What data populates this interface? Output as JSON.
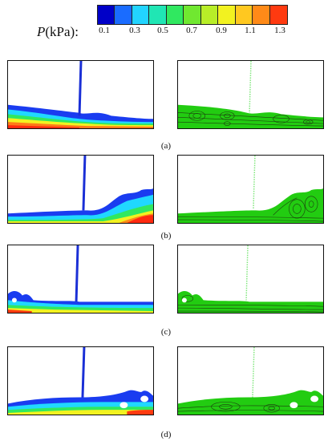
{
  "legend": {
    "symbol": "P",
    "unit": "(kPa):",
    "ticks": [
      "0.1",
      "0.3",
      "0.5",
      "0.7",
      "0.9",
      "1.1",
      "1.3"
    ],
    "colors": [
      "#0000c8",
      "#1a6cff",
      "#22d4ff",
      "#20e6b4",
      "#30e860",
      "#70e830",
      "#b8ee28",
      "#f2f220",
      "#ffc820",
      "#ff8a18",
      "#ff3a10"
    ]
  },
  "captions": [
    "(a)",
    "(b)",
    "(c)",
    "(d)"
  ],
  "colors": {
    "gas_jet": "#1a2fd6",
    "flow_field": "#22cc11",
    "streamlines": "#1d3a10",
    "liquid_high": "#ff2200"
  }
}
